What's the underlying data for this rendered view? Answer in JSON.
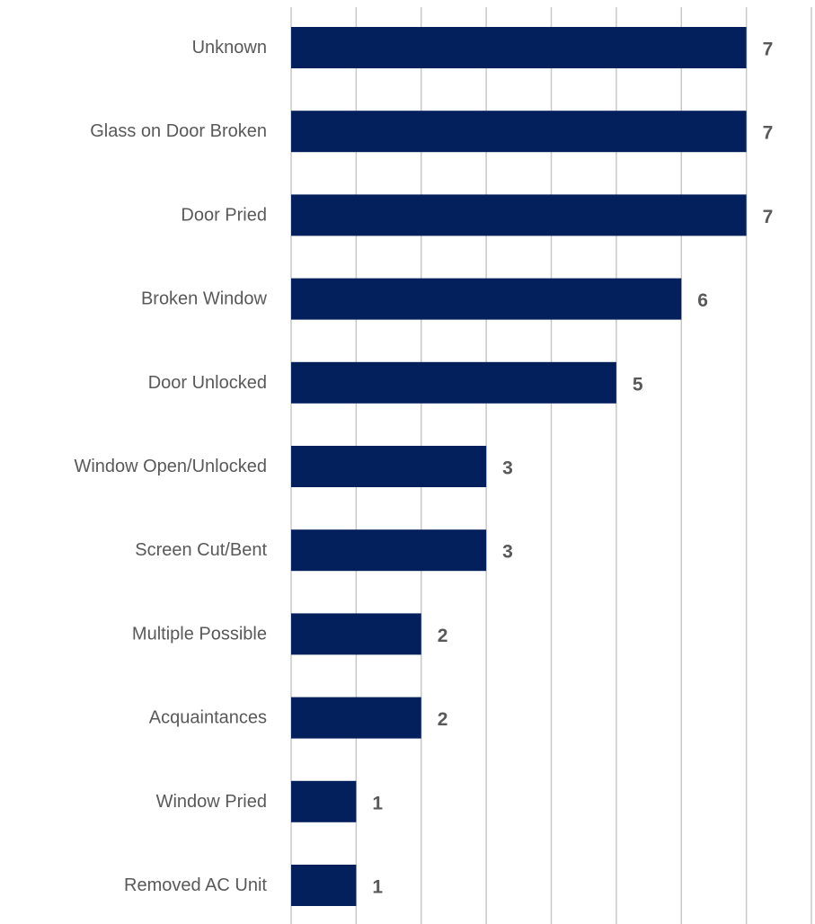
{
  "chart_data": {
    "type": "bar",
    "orientation": "horizontal",
    "title": "",
    "xlabel": "",
    "ylabel": "",
    "categories": [
      "Unknown",
      "Glass on Door Broken",
      "Door Pried",
      "Broken Window",
      "Door Unlocked",
      "Window Open/Unlocked",
      "Screen Cut/Bent",
      "Multiple Possible",
      "Acquaintances",
      "Window Pried",
      "Removed AC Unit"
    ],
    "values": [
      7,
      7,
      7,
      6,
      5,
      3,
      3,
      2,
      2,
      1,
      1
    ],
    "xlim": [
      0,
      8
    ],
    "grid": "vertical",
    "legend": "none",
    "data_labels": true,
    "colors": {
      "bar": "#03205c",
      "grid": "#c8c8c8",
      "label_text": "#595959"
    }
  }
}
